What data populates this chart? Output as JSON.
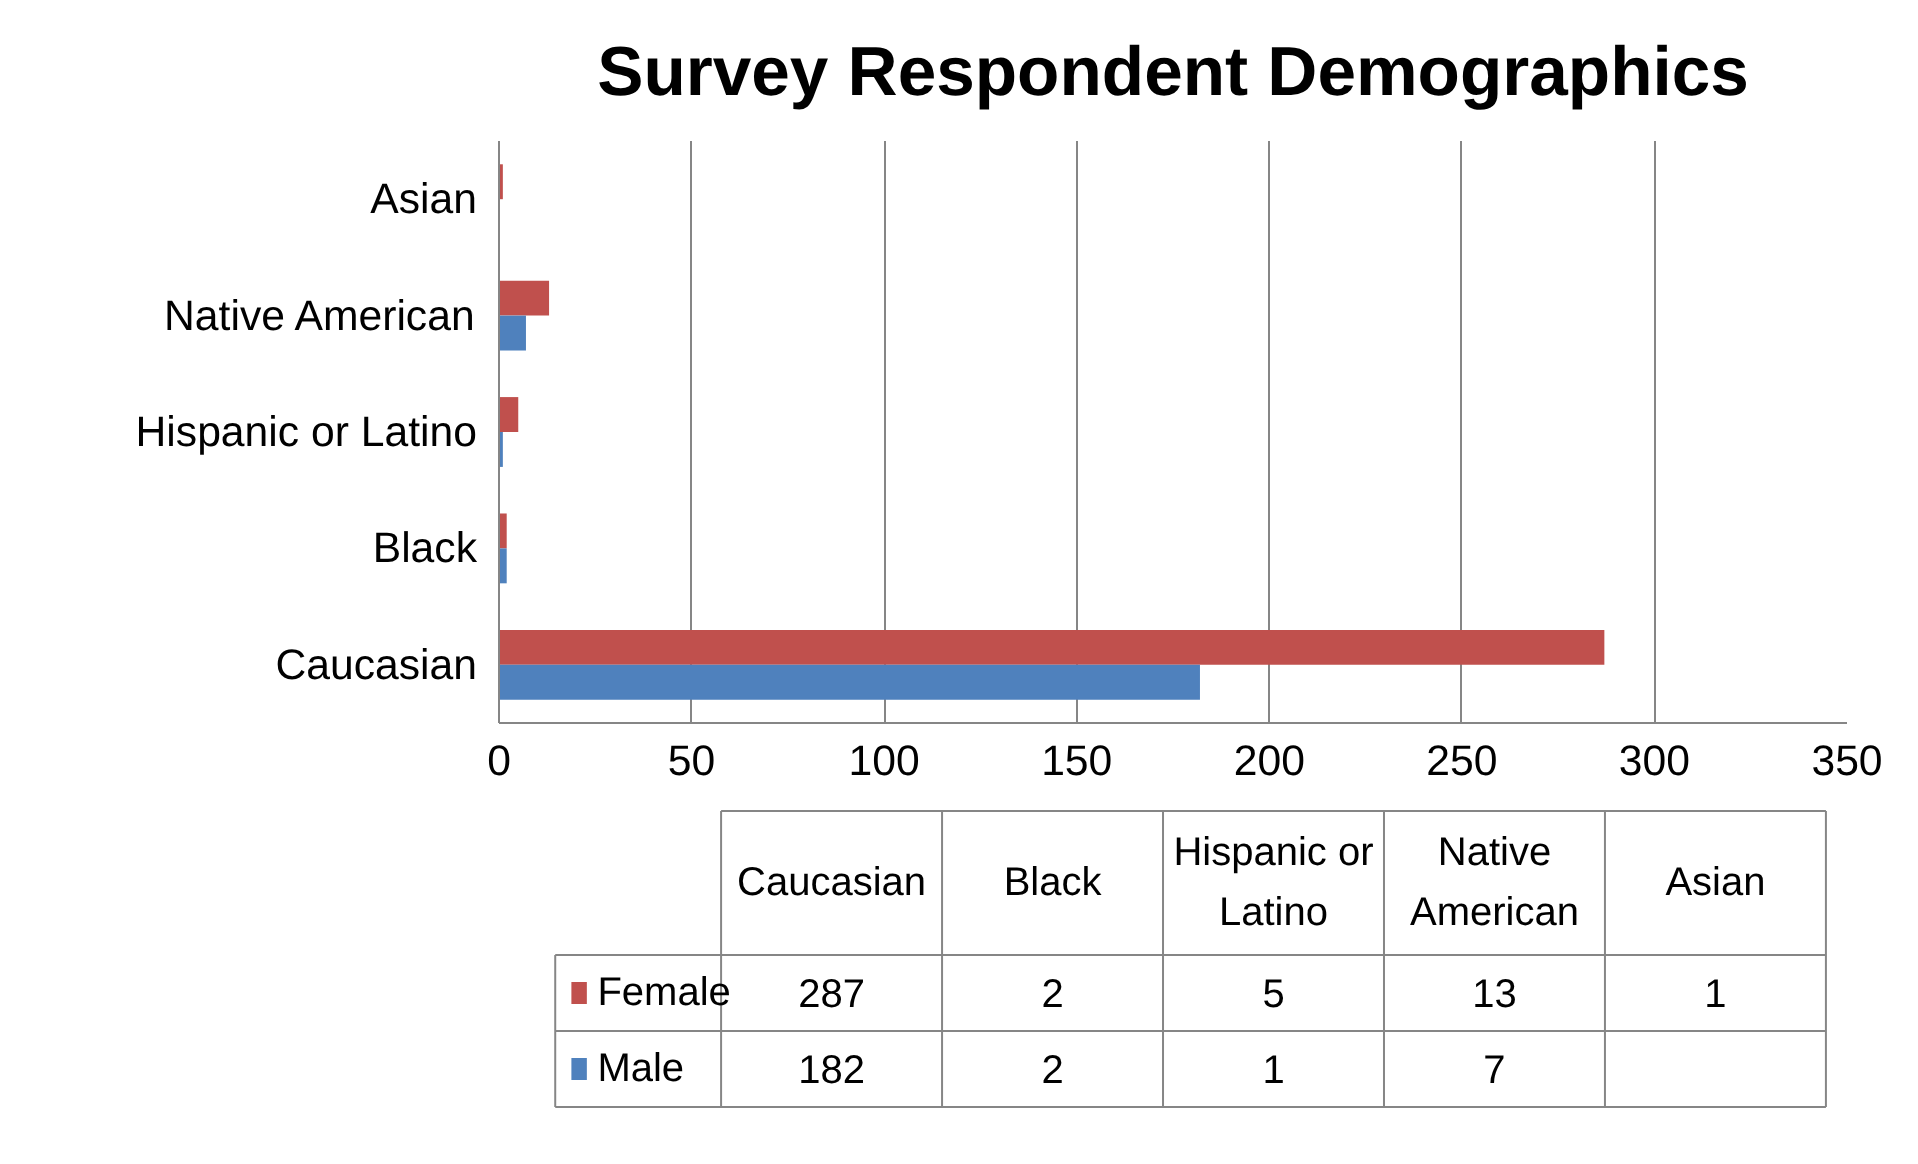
{
  "chart_data": [
    {
      "type": "bar",
      "orientation": "horizontal",
      "title": "Survey Respondent Demographics",
      "categories": [
        "Asian",
        "Native American",
        "Hispanic or Latino",
        "Black",
        "Caucasian"
      ],
      "series": [
        {
          "color": "#c0504d",
          "values": [
            1,
            13,
            5,
            2,
            287
          ]
        },
        {
          "color": "#4f81bd",
          "values": [
            null,
            7,
            1,
            2,
            182
          ]
        }
      ],
      "xlim": [
        0,
        350
      ],
      "xticks": [
        0,
        50,
        100,
        150,
        200,
        250,
        300,
        350
      ],
      "grid": "x"
    },
    {
      "type": "other",
      "categories": [
        "Caucasian",
        "Black",
        "Hispanic or Latino",
        "Native American",
        "Asian"
      ],
      "series": [
        {
          "name": "Female",
          "color": "#c0504d",
          "values": [
            287,
            2,
            5,
            13,
            1
          ]
        },
        {
          "name": "Male",
          "color": "#4f81bd",
          "values": [
            182,
            2,
            1,
            7,
            null
          ]
        }
      ],
      "legend": "left",
      "data_labels": true
    }
  ]
}
